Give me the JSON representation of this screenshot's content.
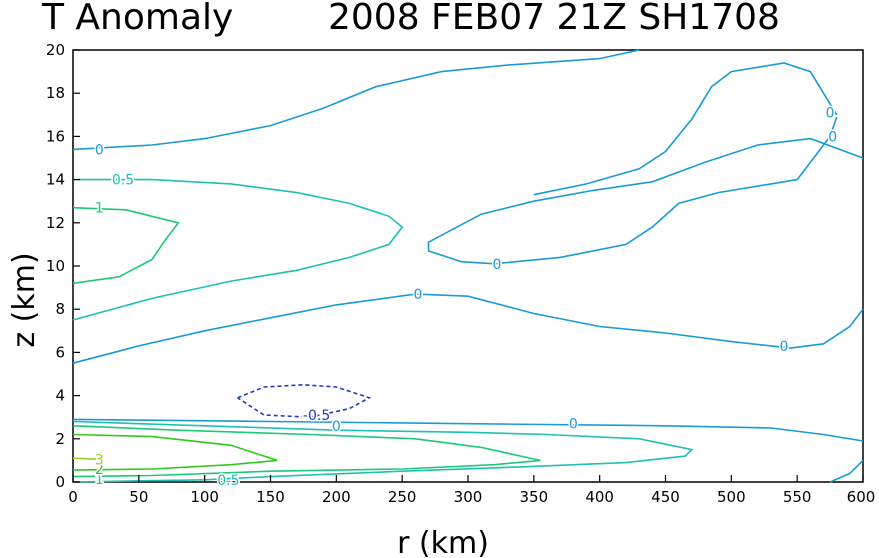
{
  "title": {
    "left": "T Anomaly",
    "right": "2008 FEB07 21Z   SH1708"
  },
  "chart_data": {
    "type": "contour",
    "variable": "T Anomaly",
    "xlabel": "r (km)",
    "ylabel": "z (km)",
    "xlim": [
      0,
      600
    ],
    "ylim": [
      0,
      20
    ],
    "x_ticks": [
      "0",
      "50",
      "100",
      "150",
      "200",
      "250",
      "300",
      "350",
      "400",
      "450",
      "500",
      "550",
      "600"
    ],
    "y_ticks": [
      "0",
      "2",
      "4",
      "6",
      "8",
      "10",
      "12",
      "14",
      "16",
      "18",
      "20"
    ],
    "grid": false,
    "legend": "none",
    "colors": {
      "neg": "#1e3cc8",
      "zero": "#1a9ad6",
      "p05": "#1ec0b4",
      "p1": "#1ec878",
      "p2": "#32c81e",
      "p3": "#96d21e"
    },
    "contours": [
      {
        "level": 0,
        "color_key": "zero",
        "dashed": false,
        "points": [
          [
            0,
            15.4
          ],
          [
            60,
            15.6
          ],
          [
            100,
            15.9
          ],
          [
            150,
            16.5
          ],
          [
            190,
            17.3
          ],
          [
            230,
            18.3
          ],
          [
            280,
            19
          ],
          [
            330,
            19.3
          ],
          [
            400,
            19.6
          ],
          [
            430,
            20
          ]
        ]
      },
      {
        "level": 0,
        "color_key": "zero",
        "dashed": false,
        "points": [
          [
            600,
            15
          ],
          [
            560,
            15.9
          ],
          [
            520,
            15.6
          ],
          [
            480,
            14.8
          ],
          [
            440,
            13.9
          ],
          [
            395,
            13.5
          ],
          [
            350,
            13
          ],
          [
            310,
            12.4
          ],
          [
            270,
            11.1
          ],
          [
            270,
            10.7
          ],
          [
            295,
            10.2
          ],
          [
            320,
            10.1
          ],
          [
            370,
            10.4
          ],
          [
            420,
            11
          ],
          [
            440,
            11.8
          ],
          [
            460,
            12.9
          ],
          [
            490,
            13.4
          ],
          [
            550,
            14
          ],
          [
            575,
            16
          ],
          [
            580,
            16.9
          ]
        ]
      },
      {
        "level": 0,
        "color_key": "zero",
        "dashed": false,
        "points": [
          [
            580,
            17
          ],
          [
            570,
            18
          ],
          [
            560,
            19
          ],
          [
            540,
            19.4
          ],
          [
            500,
            19
          ],
          [
            485,
            18.3
          ],
          [
            470,
            16.8
          ],
          [
            450,
            15.3
          ],
          [
            430,
            14.5
          ],
          [
            390,
            13.8
          ],
          [
            350,
            13.3
          ]
        ]
      },
      {
        "level": 0,
        "color_key": "zero",
        "dashed": false,
        "points": [
          [
            0,
            5.5
          ],
          [
            50,
            6.3
          ],
          [
            100,
            7
          ],
          [
            150,
            7.6
          ],
          [
            200,
            8.2
          ],
          [
            260,
            8.7
          ],
          [
            300,
            8.6
          ],
          [
            350,
            7.8
          ],
          [
            400,
            7.2
          ],
          [
            450,
            6.9
          ],
          [
            500,
            6.5
          ],
          [
            545,
            6.2
          ],
          [
            570,
            6.4
          ],
          [
            590,
            7.2
          ],
          [
            600,
            8
          ]
        ]
      },
      {
        "level": 0,
        "color_key": "zero",
        "dashed": false,
        "points": [
          [
            0,
            2.9
          ],
          [
            150,
            2.8
          ],
          [
            300,
            2.7
          ],
          [
            450,
            2.6
          ],
          [
            530,
            2.5
          ],
          [
            570,
            2.2
          ],
          [
            600,
            1.9
          ]
        ]
      },
      {
        "level": 0,
        "color_key": "zero",
        "dashed": false,
        "points": [
          [
            600,
            1
          ],
          [
            590,
            0.4
          ],
          [
            575,
            0
          ]
        ]
      },
      {
        "level": 0.5,
        "color_key": "p05",
        "dashed": false,
        "points": [
          [
            0,
            14
          ],
          [
            60,
            14
          ],
          [
            120,
            13.8
          ],
          [
            170,
            13.4
          ],
          [
            210,
            12.9
          ],
          [
            240,
            12.3
          ],
          [
            250,
            11.8
          ],
          [
            240,
            11
          ],
          [
            210,
            10.4
          ],
          [
            170,
            9.8
          ],
          [
            120,
            9.3
          ],
          [
            60,
            8.5
          ],
          [
            0,
            7.5
          ]
        ]
      },
      {
        "level": 0.5,
        "color_key": "p05",
        "dashed": false,
        "points": [
          [
            0,
            2.8
          ],
          [
            100,
            2.6
          ],
          [
            200,
            2.4
          ],
          [
            300,
            2.3
          ],
          [
            360,
            2.2
          ],
          [
            430,
            2
          ],
          [
            470,
            1.5
          ],
          [
            465,
            1.2
          ],
          [
            420,
            0.9
          ],
          [
            340,
            0.7
          ],
          [
            250,
            0.5
          ],
          [
            150,
            0.25
          ],
          [
            100,
            0.1
          ],
          [
            0,
            0
          ]
        ]
      },
      {
        "level": 1,
        "color_key": "p1",
        "dashed": false,
        "points": [
          [
            0,
            12.7
          ],
          [
            40,
            12.6
          ],
          [
            80,
            12
          ],
          [
            70,
            11.2
          ],
          [
            60,
            10.3
          ],
          [
            35,
            9.5
          ],
          [
            0,
            9.2
          ]
        ]
      },
      {
        "level": 1,
        "color_key": "p1",
        "dashed": false,
        "points": [
          [
            0,
            2.6
          ],
          [
            80,
            2.4
          ],
          [
            180,
            2.2
          ],
          [
            260,
            2
          ],
          [
            310,
            1.6
          ],
          [
            355,
            1
          ],
          [
            320,
            0.8
          ],
          [
            250,
            0.6
          ],
          [
            150,
            0.5
          ],
          [
            60,
            0.3
          ],
          [
            0,
            0.25
          ]
        ]
      },
      {
        "level": 2,
        "color_key": "p2",
        "dashed": false,
        "points": [
          [
            0,
            2.2
          ],
          [
            60,
            2.1
          ],
          [
            120,
            1.7
          ],
          [
            155,
            1
          ],
          [
            120,
            0.8
          ],
          [
            60,
            0.6
          ],
          [
            0,
            0.55
          ]
        ]
      },
      {
        "level": 3,
        "color_key": "p3",
        "dashed": false,
        "points": [
          [
            0,
            1.1
          ],
          [
            20,
            1.05
          ]
        ]
      },
      {
        "level": -0.5,
        "color_key": "neg",
        "dashed": true,
        "points": [
          [
            125,
            3.9
          ],
          [
            145,
            4.4
          ],
          [
            175,
            4.5
          ],
          [
            200,
            4.4
          ],
          [
            225,
            3.9
          ],
          [
            210,
            3.4
          ],
          [
            180,
            3
          ],
          [
            145,
            3.1
          ],
          [
            125,
            3.9
          ]
        ]
      }
    ],
    "contour_labels": [
      {
        "text": "0",
        "x": 20,
        "y": 15.4,
        "color_key": "zero"
      },
      {
        "text": "0",
        "x": 575,
        "y": 17.1,
        "color_key": "zero"
      },
      {
        "text": "0",
        "x": 577,
        "y": 16.0,
        "color_key": "zero"
      },
      {
        "text": "0",
        "x": 322,
        "y": 10.1,
        "color_key": "zero"
      },
      {
        "text": "0",
        "x": 262,
        "y": 8.7,
        "color_key": "zero"
      },
      {
        "text": "0",
        "x": 540,
        "y": 6.3,
        "color_key": "zero"
      },
      {
        "text": "0",
        "x": 380,
        "y": 2.7,
        "color_key": "zero"
      },
      {
        "text": "0",
        "x": 200,
        "y": 2.6,
        "color_key": "zero"
      },
      {
        "text": "-0.5",
        "x": 185,
        "y": 3.1,
        "color_key": "neg"
      },
      {
        "text": "0.5",
        "x": 38,
        "y": 14.0,
        "color_key": "p05"
      },
      {
        "text": "0.5",
        "x": 118,
        "y": 0.1,
        "color_key": "p05"
      },
      {
        "text": "1",
        "x": 20,
        "y": 12.7,
        "color_key": "p1"
      },
      {
        "text": "1",
        "x": 20,
        "y": 0.15,
        "color_key": "p1"
      },
      {
        "text": "2",
        "x": 20,
        "y": 0.6,
        "color_key": "p2"
      },
      {
        "text": "3",
        "x": 20,
        "y": 1.05,
        "color_key": "p3"
      }
    ]
  }
}
